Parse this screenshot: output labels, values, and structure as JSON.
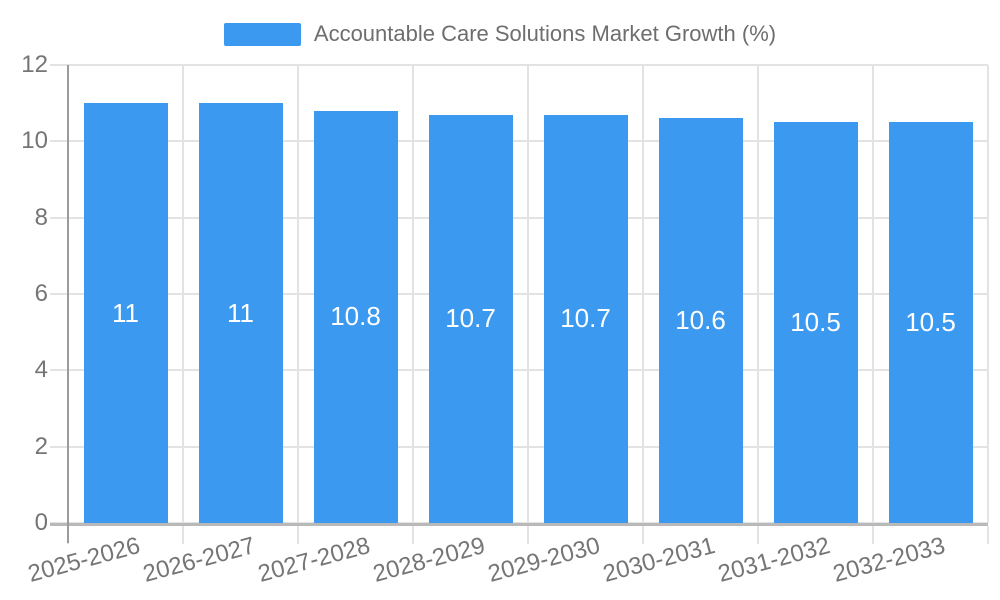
{
  "chart_data": {
    "type": "bar",
    "title": "Accountable Care Solutions Market Growth (%)",
    "legend_entries": [
      "Accountable Care Solutions Market Growth (%)"
    ],
    "legend_position": "top",
    "categories": [
      "2025-2026",
      "2026-2027",
      "2027-2028",
      "2028-2029",
      "2029-2030",
      "2030-2031",
      "2031-2032",
      "2032-2033"
    ],
    "values": [
      11,
      11,
      10.8,
      10.7,
      10.7,
      10.6,
      10.5,
      10.5
    ],
    "value_labels": [
      "11",
      "11",
      "10.8",
      "10.7",
      "10.7",
      "10.6",
      "10.5",
      "10.5"
    ],
    "xlabel": "",
    "ylabel": "",
    "ylim": [
      0,
      12
    ],
    "yticks": [
      0,
      2,
      4,
      6,
      8,
      10,
      12
    ],
    "grid": true,
    "x_label_rotation_deg": -15,
    "colors": {
      "bar": "#3b99f0",
      "grid": "#e3e3e3",
      "axis_y": "#9b9b9b",
      "axis_x": "#b9b9b9",
      "tick_text": "#757575",
      "legend_text": "#6e6e6e",
      "value_text": "#ffffff",
      "background": "#ffffff"
    }
  }
}
